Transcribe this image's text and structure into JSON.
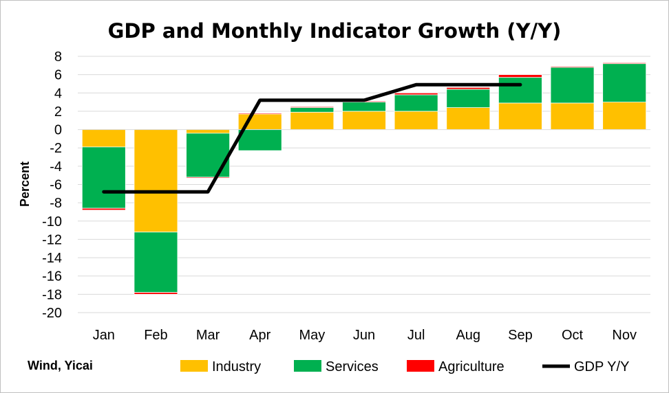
{
  "chart_data": {
    "type": "bar",
    "stacked": true,
    "title": "GDP and Monthly Indicator Growth (Y/Y)",
    "ylabel": "Percent",
    "xlabel": "",
    "ylim": [
      -20,
      8
    ],
    "yticks": [
      8,
      6,
      4,
      2,
      0,
      -2,
      -4,
      -6,
      -8,
      -10,
      -12,
      -14,
      -16,
      -18,
      -20
    ],
    "grid": true,
    "legend_position": "bottom",
    "categories": [
      "Jan",
      "Feb",
      "Mar",
      "Apr",
      "May",
      "Jun",
      "Jul",
      "Aug",
      "Sep",
      "Oct",
      "Nov"
    ],
    "series": [
      {
        "name": "Industry",
        "kind": "bar",
        "color": "#FFC000",
        "values": [
          -1.9,
          -11.2,
          -0.4,
          1.7,
          1.9,
          2.0,
          2.0,
          2.4,
          2.9,
          2.9,
          3.0
        ]
      },
      {
        "name": "Services",
        "kind": "bar",
        "color": "#00B050",
        "values": [
          -6.7,
          -6.6,
          -4.8,
          -2.3,
          0.5,
          1.0,
          1.8,
          2.0,
          2.8,
          3.9,
          4.2
        ]
      },
      {
        "name": "Agriculture",
        "kind": "bar",
        "color": "#FF0000",
        "values": [
          -0.2,
          -0.2,
          -0.1,
          0.1,
          0.1,
          0.1,
          0.2,
          0.2,
          0.3,
          0.1,
          0.1
        ]
      },
      {
        "name": "GDP Y/Y",
        "kind": "line",
        "color": "#000000",
        "values": [
          -6.8,
          -6.8,
          -6.8,
          3.2,
          3.2,
          3.2,
          4.9,
          4.9,
          4.9,
          null,
          null
        ]
      }
    ]
  },
  "source_note": "Wind, Yicai"
}
